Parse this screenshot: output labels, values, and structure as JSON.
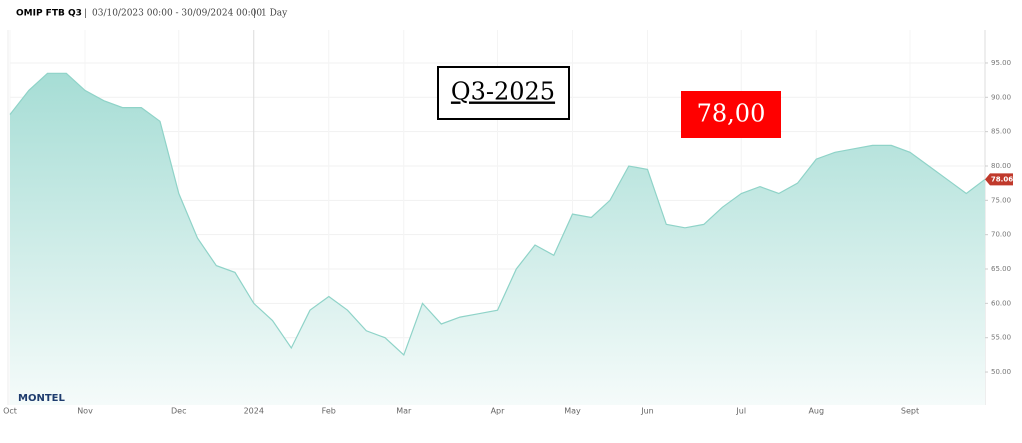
{
  "chart_data": {
    "type": "area",
    "title": "OMIP FTB Q3",
    "subtitle": "03/10/2023 00:00 - 30/09/2024 00:00",
    "interval": "1 Day",
    "logo": "MONTEL",
    "annotations": [
      "Q3-2025",
      "78,00"
    ],
    "categories": [
      "Oct",
      null,
      null,
      null,
      "Nov",
      null,
      null,
      null,
      null,
      "Dec",
      null,
      null,
      null,
      "2024",
      null,
      null,
      null,
      "Feb",
      null,
      null,
      null,
      "Mar",
      null,
      null,
      null,
      null,
      "Apr",
      null,
      null,
      null,
      "May",
      null,
      null,
      null,
      "Jun",
      null,
      null,
      null,
      null,
      "Jul",
      null,
      null,
      null,
      "Aug",
      null,
      null,
      null,
      null,
      "Sept",
      null,
      null,
      null,
      null
    ],
    "values": [
      87.5,
      91,
      93.5,
      93.5,
      91,
      89.5,
      88.5,
      88.5,
      86.5,
      76,
      69.5,
      65.5,
      64.5,
      60,
      57.5,
      53.5,
      59,
      61,
      59,
      56,
      55,
      52.5,
      60,
      57,
      58,
      58.5,
      59,
      65,
      68.5,
      67,
      73,
      72.5,
      75,
      80,
      79.5,
      71.5,
      71,
      71.5,
      74,
      76,
      77,
      76,
      77.5,
      81,
      82,
      82.5,
      83,
      83,
      82,
      80,
      78,
      76,
      78.06
    ],
    "color": "#8fd3c8",
    "ylim": [
      45.2,
      99.8
    ],
    "yticks": [
      {
        "value": 50,
        "label": "50.00"
      },
      {
        "value": 55,
        "label": "55.00"
      },
      {
        "value": 60,
        "label": "60.00"
      },
      {
        "value": 65,
        "label": "65.00"
      },
      {
        "value": 70,
        "label": "70.00"
      },
      {
        "value": 75,
        "label": "75.00"
      },
      {
        "value": 80,
        "label": "80.00"
      },
      {
        "value": 85,
        "label": "85.00"
      },
      {
        "value": 90,
        "label": "90.00"
      },
      {
        "value": 95,
        "label": "95.00"
      }
    ],
    "grid": true
  }
}
